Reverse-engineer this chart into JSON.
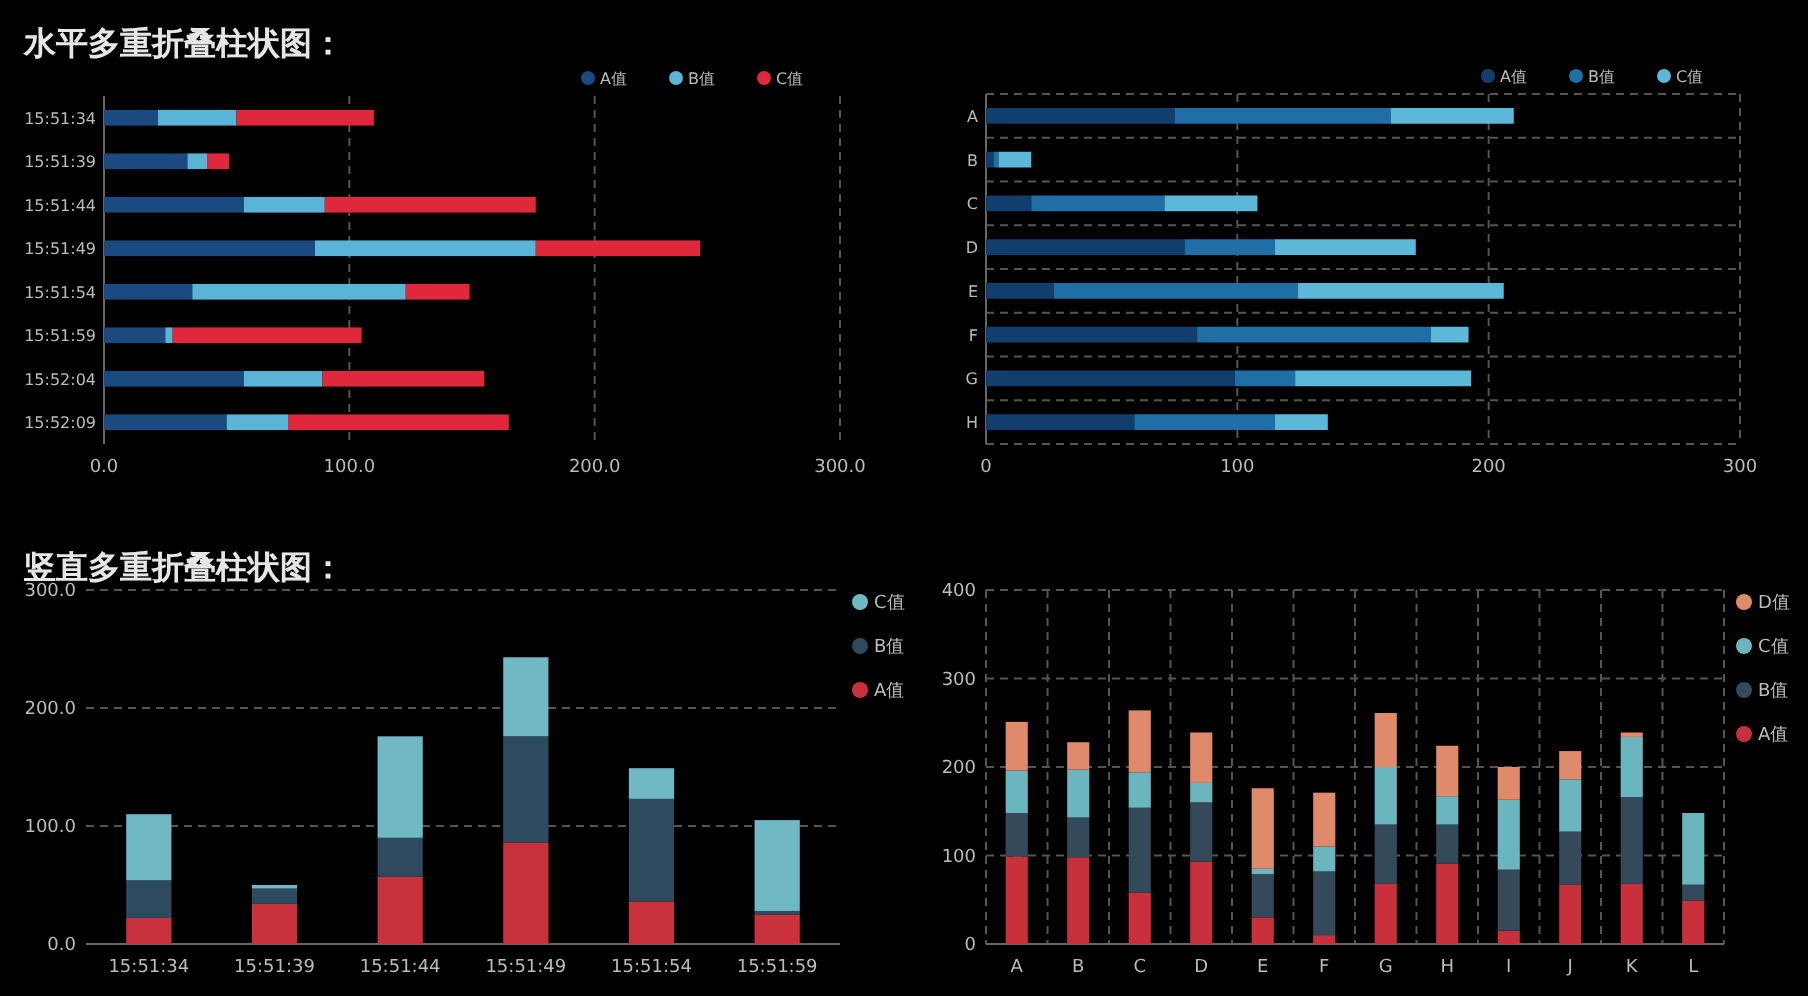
{
  "chart_data": [
    {
      "type": "bar",
      "title": "水平多重折叠柱状图：",
      "orientation": "horizontal",
      "stacked": true,
      "grid": "x",
      "legend": "top right",
      "categories": [
        "15:51:34",
        "15:51:39",
        "15:51:44",
        "15:51:49",
        "15:51:54",
        "15:51:59",
        "15:52:04",
        "15:52:09"
      ],
      "xlim": [
        0,
        300
      ],
      "xticks": [
        {
          "value": 0,
          "label": "0.0"
        },
        {
          "value": 100,
          "label": "100.0"
        },
        {
          "value": 200,
          "label": "200.0"
        },
        {
          "value": 300,
          "label": "300.0"
        }
      ],
      "series": [
        {
          "name": "A值",
          "color": "#1a4a80",
          "values": [
            22,
            34,
            57,
            86,
            36,
            25,
            57,
            50
          ]
        },
        {
          "name": "B值",
          "color": "#5ab4d6",
          "values": [
            32,
            8,
            33,
            90,
            87,
            3,
            32,
            25
          ]
        },
        {
          "name": "C值",
          "color": "#e0283c",
          "values": [
            56,
            9,
            86,
            67,
            26,
            77,
            66,
            90
          ]
        }
      ]
    },
    {
      "type": "bar",
      "orientation": "horizontal",
      "stacked": true,
      "grid": true,
      "legend": "top right",
      "categories": [
        "A",
        "B",
        "C",
        "D",
        "E",
        "F",
        "G",
        "H"
      ],
      "xlim": [
        0,
        300
      ],
      "xticks": [
        0,
        100,
        200,
        300
      ],
      "series": [
        {
          "name": "A值",
          "color": "#123e6e",
          "values": [
            75,
            3,
            18,
            79,
            27,
            84,
            99,
            59
          ]
        },
        {
          "name": "B值",
          "color": "#1f6fa6",
          "values": [
            86,
            2,
            53,
            36,
            97,
            93,
            24,
            56
          ]
        },
        {
          "name": "C值",
          "color": "#5bb8d8",
          "values": [
            49,
            13,
            37,
            56,
            82,
            15,
            70,
            21
          ]
        }
      ]
    },
    {
      "type": "bar",
      "title": "竖直多重折叠柱状图：",
      "stacked": true,
      "grid": "y",
      "legend": "right",
      "categories": [
        "15:51:34",
        "15:51:39",
        "15:51:44",
        "15:51:49",
        "15:51:54",
        "15:51:59"
      ],
      "ylim": [
        0,
        300
      ],
      "yticks": [
        {
          "value": 0,
          "label": "0.0"
        },
        {
          "value": 100,
          "label": "100.0"
        },
        {
          "value": 200,
          "label": "200.0"
        },
        {
          "value": 300,
          "label": "300.0"
        }
      ],
      "series": [
        {
          "name": "A值",
          "color": "#c9313d",
          "values": [
            22,
            34,
            57,
            86,
            36,
            25
          ]
        },
        {
          "name": "B值",
          "color": "#2e4a5e",
          "values": [
            32,
            13,
            33,
            90,
            87,
            3
          ]
        },
        {
          "name": "C值",
          "color": "#6fb8c4",
          "values": [
            56,
            3,
            86,
            67,
            26,
            77
          ]
        }
      ]
    },
    {
      "type": "bar",
      "stacked": true,
      "grid": true,
      "legend": "right",
      "categories": [
        "A",
        "B",
        "C",
        "D",
        "E",
        "F",
        "G",
        "H",
        "I",
        "J",
        "K",
        "L"
      ],
      "ylim": [
        0,
        400
      ],
      "yticks": [
        0,
        100,
        200,
        300,
        400
      ],
      "series": [
        {
          "name": "A值",
          "color": "#c8313b",
          "values": [
            99,
            98,
            58,
            93,
            30,
            10,
            68,
            91,
            15,
            67,
            68,
            49
          ]
        },
        {
          "name": "B值",
          "color": "#34495a",
          "values": [
            49,
            45,
            96,
            67,
            49,
            72,
            67,
            44,
            69,
            60,
            98,
            18
          ]
        },
        {
          "name": "C值",
          "color": "#6ab5be",
          "values": [
            48,
            54,
            40,
            22,
            6,
            28,
            65,
            32,
            79,
            59,
            68,
            81
          ]
        },
        {
          "name": "D值",
          "color": "#e08a6c",
          "values": [
            55,
            31,
            70,
            57,
            91,
            61,
            61,
            57,
            37,
            32,
            5,
            0
          ]
        }
      ]
    }
  ]
}
